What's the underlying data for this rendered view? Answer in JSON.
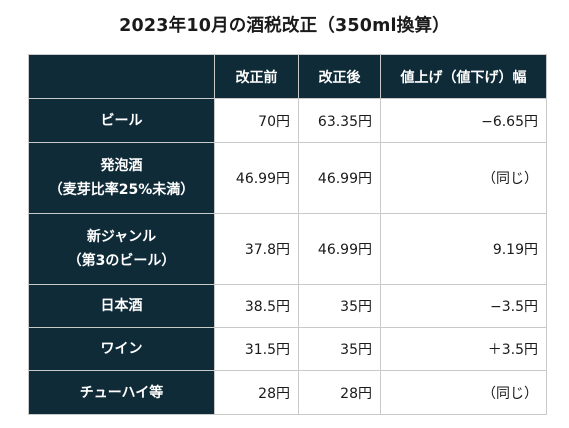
{
  "title": "2023年10月の酒税改正（350ml換算）",
  "table": {
    "headers": [
      "",
      "改正前",
      "改正後",
      "値上げ（値下げ）幅"
    ],
    "rows": [
      {
        "name": [
          "ビール"
        ],
        "before": "70円",
        "after": "63.35円",
        "change": "−6.65円"
      },
      {
        "name": [
          "発泡酒",
          "（麦芽比率25%未満）"
        ],
        "before": "46.99円",
        "after": "46.99円",
        "change": "（同じ）"
      },
      {
        "name": [
          "新ジャンル",
          "（第3のビール）"
        ],
        "before": "37.8円",
        "after": "46.99円",
        "change": "9.19円"
      },
      {
        "name": [
          "日本酒"
        ],
        "before": "38.5円",
        "after": "35円",
        "change": "−3.5円"
      },
      {
        "name": [
          "ワイン"
        ],
        "before": "31.5円",
        "after": "35円",
        "change": "＋3.5円"
      },
      {
        "name": [
          "チューハイ等"
        ],
        "before": "28円",
        "after": "28円",
        "change": "（同じ）"
      }
    ]
  },
  "colors": {
    "header_bg": "#0f2b38",
    "header_text": "#ffffff",
    "border": "#c9c9c9"
  }
}
